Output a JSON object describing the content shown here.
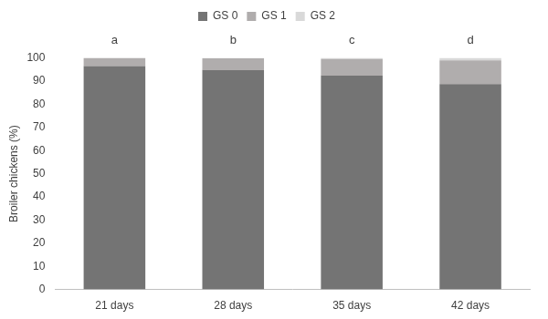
{
  "chart_data": {
    "type": "bar",
    "y_label": "Broiler chickens (%)",
    "categories": [
      "21 days",
      "28 days",
      "35 days",
      "42 days"
    ],
    "annotations": [
      "a",
      "b",
      "c",
      "d"
    ],
    "series": [
      {
        "name": "GS 0",
        "color": "#747474",
        "values": [
          96.5,
          94.8,
          92.5,
          88.7
        ]
      },
      {
        "name": "GS 1",
        "color": "#b0adad",
        "values": [
          3.5,
          5.0,
          7.0,
          10.3
        ]
      },
      {
        "name": "GS 2",
        "color": "#d9d9d9",
        "values": [
          0,
          0.2,
          0.5,
          1.0
        ]
      }
    ],
    "ylim": [
      0,
      100
    ],
    "yticks": [
      0,
      10,
      20,
      30,
      40,
      50,
      60,
      70,
      80,
      90,
      100
    ],
    "stacked": true,
    "grid": false,
    "legend": "top"
  }
}
